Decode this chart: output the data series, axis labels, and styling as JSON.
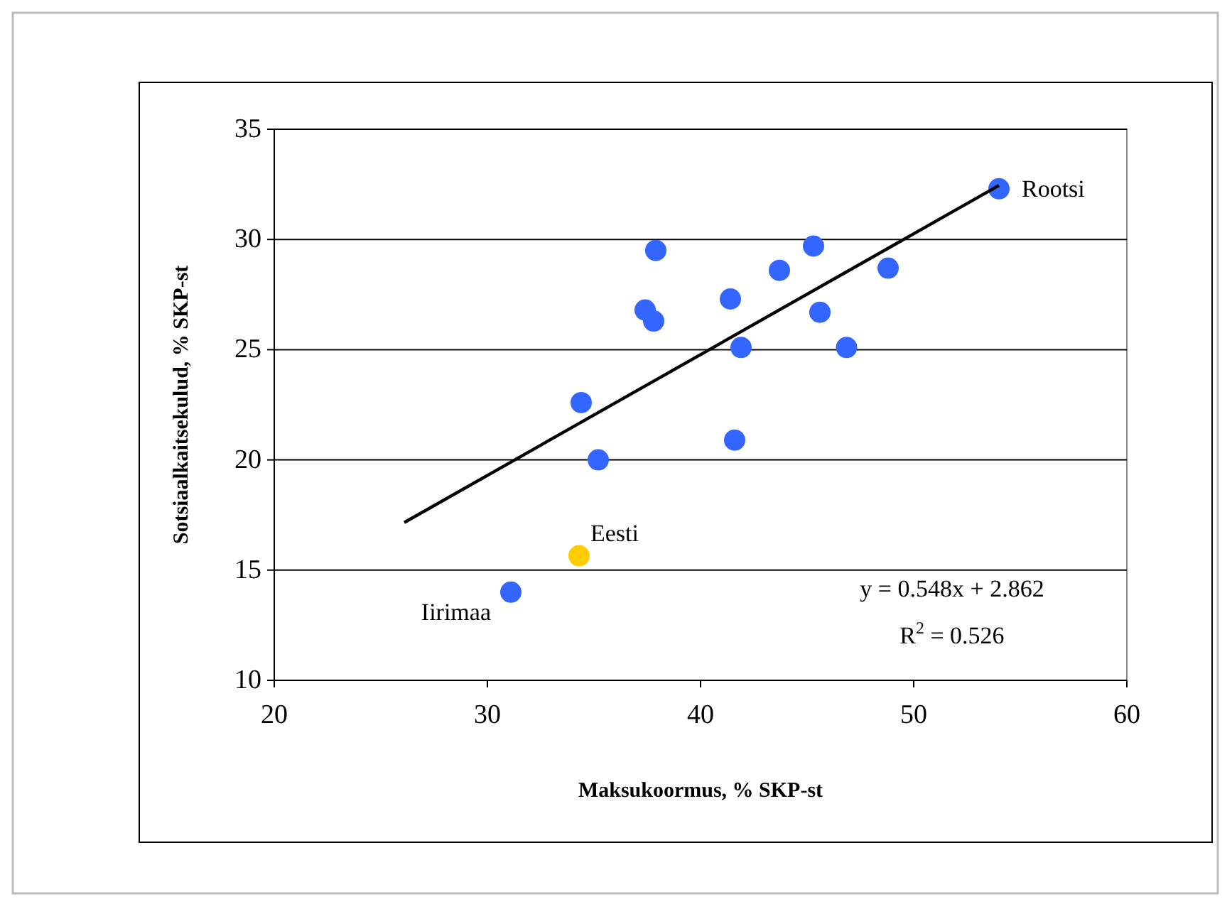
{
  "chart_data": {
    "type": "scatter",
    "xlabel": "Maksukoormus, % SKP-st",
    "ylabel": "Sotsiaalkaitsekulud, % SKP-st",
    "xlim": [
      20,
      60
    ],
    "xticks": [
      20,
      30,
      40,
      50,
      60
    ],
    "ylim": [
      10,
      35
    ],
    "yticks": [
      10,
      15,
      20,
      25,
      30,
      35
    ],
    "grid": "y",
    "marker": "circle",
    "series": [
      {
        "x": [
          37.9,
          45.3,
          43.7,
          48.8,
          41.4,
          37.4,
          37.8,
          45.6,
          41.9,
          46.85,
          34.4,
          35.2,
          41.6,
          31.1,
          54.0
        ],
        "values": [
          29.5,
          29.7,
          28.6,
          28.7,
          27.3,
          26.8,
          26.3,
          26.7,
          25.1,
          25.1,
          22.6,
          20.0,
          20.9,
          14.0,
          32.3
        ],
        "color": "#3366ff"
      },
      {
        "x": [
          34.3
        ],
        "values": [
          15.65
        ],
        "color": "#ffcc00"
      },
      {
        "type": "line",
        "x": [
          26.1,
          54.0
        ],
        "values": [
          17.16,
          32.45
        ],
        "color": "#000000",
        "marker": "none",
        "line_style": "solid"
      }
    ],
    "annotations": [
      {
        "text": "Rootsi",
        "x": 54.0,
        "y": 32.3
      },
      {
        "text": "Eesti",
        "x": 34.3,
        "y": 15.65
      },
      {
        "text": "Iirimaa",
        "x": 31.1,
        "y": 14.0
      },
      "y = 0.548x + 2.862",
      "R$^{2}$ = 0.526"
    ]
  }
}
